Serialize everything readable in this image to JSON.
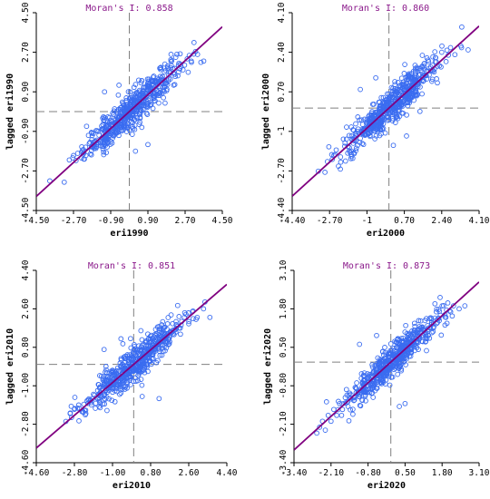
{
  "chart_data": [
    {
      "type": "scatter",
      "title": "Moran's I: 0.858",
      "xlabel": "eri1990",
      "ylabel": "lagged eri1990",
      "xticks": [
        "-4.50",
        "-2.70",
        "-0.90",
        "0.90",
        "2.70",
        "4.50"
      ],
      "yticks": [
        "-4.50",
        "-2.70",
        "-0.90",
        "0.90",
        "2.70",
        "4.50"
      ],
      "xlim": [
        -4.5,
        4.5
      ],
      "ylim": [
        -4.5,
        4.5
      ],
      "slope": 0.858,
      "grid": false,
      "point_color": "#3a6cf0",
      "line_color": "#800080",
      "points": [
        [
          -2.9,
          -2.2
        ],
        [
          -2.7,
          -2.0
        ],
        [
          -2.5,
          -1.9
        ],
        [
          -2.3,
          -1.6
        ],
        [
          -2.1,
          -2.0
        ],
        [
          -1.9,
          -1.4
        ],
        [
          -1.8,
          -1.1
        ],
        [
          -1.6,
          -1.5
        ],
        [
          -1.5,
          -0.9
        ],
        [
          -1.4,
          -1.3
        ],
        [
          -1.3,
          -0.8
        ],
        [
          -1.2,
          -1.5
        ],
        [
          -1.1,
          -0.6
        ],
        [
          -1.0,
          -1.0
        ],
        [
          -0.9,
          -0.4
        ],
        [
          -0.8,
          -1.2
        ],
        [
          -0.7,
          -0.5
        ],
        [
          -0.6,
          -0.9
        ],
        [
          -0.5,
          -0.2
        ],
        [
          -0.4,
          -0.7
        ],
        [
          -0.3,
          0.1
        ],
        [
          -0.2,
          -0.4
        ],
        [
          -0.1,
          0.3
        ],
        [
          0.0,
          -0.2
        ],
        [
          0.1,
          0.5
        ],
        [
          0.2,
          0.0
        ],
        [
          0.3,
          0.7
        ],
        [
          0.4,
          0.2
        ],
        [
          0.5,
          0.9
        ],
        [
          0.6,
          0.3
        ],
        [
          0.7,
          1.1
        ],
        [
          0.8,
          0.5
        ],
        [
          0.9,
          1.0
        ],
        [
          1.0,
          0.6
        ],
        [
          1.1,
          1.4
        ],
        [
          1.2,
          0.8
        ],
        [
          1.3,
          1.2
        ],
        [
          1.4,
          0.9
        ],
        [
          1.5,
          1.6
        ],
        [
          1.6,
          1.1
        ],
        [
          1.7,
          1.8
        ],
        [
          1.8,
          1.3
        ],
        [
          1.9,
          1.5
        ],
        [
          2.0,
          2.0
        ],
        [
          2.2,
          1.7
        ],
        [
          2.4,
          2.2
        ],
        [
          2.6,
          1.9
        ],
        [
          2.8,
          2.4
        ],
        [
          3.0,
          2.3
        ],
        [
          3.3,
          2.6
        ],
        [
          3.6,
          2.3
        ],
        [
          0.3,
          -1.8
        ],
        [
          0.9,
          -1.5
        ],
        [
          -1.2,
          0.9
        ],
        [
          -0.5,
          1.2
        ]
      ]
    },
    {
      "type": "scatter",
      "title": "Moran's I: 0.860",
      "xlabel": "eri2000",
      "ylabel": "lagged eri2000",
      "xticks": [
        "-4.40",
        "-2.70",
        "-1",
        "0.70",
        "2.40",
        "4.10"
      ],
      "yticks": [
        "-4.40",
        "-2.70",
        "-1",
        "0.70",
        "2.40",
        "4.10"
      ],
      "xlim": [
        -4.4,
        4.1
      ],
      "ylim": [
        -4.4,
        4.1
      ],
      "slope": 0.86,
      "grid": false,
      "point_color": "#3a6cf0",
      "line_color": "#800080",
      "points": [
        [
          -2.8,
          -2.3
        ],
        [
          -2.6,
          -2.0
        ],
        [
          -2.4,
          -1.8
        ],
        [
          -2.2,
          -2.1
        ],
        [
          -2.0,
          -1.5
        ],
        [
          -1.8,
          -1.7
        ],
        [
          -1.7,
          -1.2
        ],
        [
          -1.5,
          -1.4
        ],
        [
          -1.4,
          -0.9
        ],
        [
          -1.3,
          -1.3
        ],
        [
          -1.2,
          -0.7
        ],
        [
          -1.1,
          -1.1
        ],
        [
          -1.0,
          -0.5
        ],
        [
          -0.9,
          -0.9
        ],
        [
          -0.8,
          -0.3
        ],
        [
          -0.7,
          -0.8
        ],
        [
          -0.6,
          -0.2
        ],
        [
          -0.5,
          -0.6
        ],
        [
          -0.4,
          0.0
        ],
        [
          -0.3,
          -0.4
        ],
        [
          -0.2,
          0.2
        ],
        [
          -0.1,
          -0.2
        ],
        [
          0.0,
          0.4
        ],
        [
          0.1,
          0.0
        ],
        [
          0.2,
          0.6
        ],
        [
          0.3,
          0.2
        ],
        [
          0.4,
          0.8
        ],
        [
          0.5,
          0.3
        ],
        [
          0.6,
          1.0
        ],
        [
          0.7,
          0.5
        ],
        [
          0.8,
          1.2
        ],
        [
          0.9,
          0.7
        ],
        [
          1.0,
          1.3
        ],
        [
          1.1,
          0.8
        ],
        [
          1.2,
          1.5
        ],
        [
          1.3,
          1.0
        ],
        [
          1.4,
          1.7
        ],
        [
          1.5,
          1.2
        ],
        [
          1.6,
          1.9
        ],
        [
          1.7,
          1.4
        ],
        [
          1.8,
          2.0
        ],
        [
          1.9,
          1.6
        ],
        [
          2.0,
          2.2
        ],
        [
          2.2,
          1.8
        ],
        [
          2.4,
          2.4
        ],
        [
          2.6,
          2.0
        ],
        [
          2.8,
          2.6
        ],
        [
          3.0,
          2.3
        ],
        [
          3.3,
          2.6
        ],
        [
          3.6,
          2.5
        ],
        [
          0.2,
          -1.6
        ],
        [
          0.8,
          -1.2
        ],
        [
          -1.3,
          0.8
        ],
        [
          -0.6,
          1.3
        ]
      ]
    },
    {
      "type": "scatter",
      "title": "Moran's I: 0.851",
      "xlabel": "eri2010",
      "ylabel": "lagged eri2010",
      "xticks": [
        "-4.60",
        "-2.80",
        "-1.00",
        "0.80",
        "2.60",
        "4.40"
      ],
      "yticks": [
        "-4.60",
        "-2.80",
        "-1.00",
        "0.80",
        "2.60",
        "4.40"
      ],
      "xlim": [
        -4.6,
        4.4
      ],
      "ylim": [
        -4.6,
        4.4
      ],
      "slope": 0.851,
      "grid": false,
      "point_color": "#3a6cf0",
      "line_color": "#800080",
      "points": [
        [
          -3.0,
          -2.3
        ],
        [
          -2.8,
          -2.1
        ],
        [
          -2.6,
          -1.9
        ],
        [
          -2.4,
          -2.2
        ],
        [
          -2.2,
          -1.7
        ],
        [
          -2.0,
          -1.9
        ],
        [
          -1.9,
          -1.4
        ],
        [
          -1.7,
          -1.6
        ],
        [
          -1.6,
          -1.1
        ],
        [
          -1.5,
          -1.5
        ],
        [
          -1.4,
          -0.9
        ],
        [
          -1.3,
          -1.2
        ],
        [
          -1.2,
          -0.7
        ],
        [
          -1.1,
          -1.1
        ],
        [
          -1.0,
          -0.5
        ],
        [
          -0.9,
          -0.9
        ],
        [
          -0.8,
          -0.3
        ],
        [
          -0.7,
          -0.8
        ],
        [
          -0.6,
          -0.1
        ],
        [
          -0.5,
          -0.6
        ],
        [
          -0.4,
          0.1
        ],
        [
          -0.3,
          -0.4
        ],
        [
          -0.2,
          0.3
        ],
        [
          -0.1,
          -0.1
        ],
        [
          0.0,
          0.5
        ],
        [
          0.1,
          0.1
        ],
        [
          0.2,
          0.7
        ],
        [
          0.3,
          0.3
        ],
        [
          0.4,
          0.9
        ],
        [
          0.5,
          0.4
        ],
        [
          0.6,
          1.1
        ],
        [
          0.7,
          0.6
        ],
        [
          0.8,
          1.2
        ],
        [
          0.9,
          0.8
        ],
        [
          1.0,
          1.4
        ],
        [
          1.1,
          0.9
        ],
        [
          1.2,
          1.6
        ],
        [
          1.3,
          1.1
        ],
        [
          1.4,
          1.7
        ],
        [
          1.5,
          1.3
        ],
        [
          1.6,
          1.9
        ],
        [
          1.8,
          1.5
        ],
        [
          2.0,
          2.0
        ],
        [
          2.2,
          1.7
        ],
        [
          2.4,
          2.2
        ],
        [
          2.6,
          1.9
        ],
        [
          2.8,
          2.5
        ],
        [
          3.0,
          2.2
        ],
        [
          3.3,
          2.6
        ],
        [
          3.6,
          2.2
        ],
        [
          0.4,
          -1.5
        ],
        [
          1.2,
          -1.6
        ],
        [
          -1.4,
          0.7
        ],
        [
          -0.6,
          1.2
        ]
      ]
    },
    {
      "type": "scatter",
      "title": "Moran's I: 0.873",
      "xlabel": "eri2020",
      "ylabel": "lagged eri2020",
      "xticks": [
        "-3.40",
        "-2.10",
        "-0.80",
        "0.50",
        "1.80",
        "3.10"
      ],
      "yticks": [
        "-3.40",
        "-2.10",
        "-0.80",
        "0.50",
        "1.80",
        "3.10"
      ],
      "xlim": [
        -3.4,
        3.1
      ],
      "ylim": [
        -3.4,
        3.1
      ],
      "slope": 0.873,
      "grid": false,
      "point_color": "#3a6cf0",
      "line_color": "#800080",
      "points": [
        [
          -2.6,
          -2.4
        ],
        [
          -2.5,
          -2.2
        ],
        [
          -2.4,
          -2.0
        ],
        [
          -2.3,
          -2.3
        ],
        [
          -2.2,
          -1.8
        ],
        [
          -2.1,
          -2.0
        ],
        [
          -2.0,
          -1.6
        ],
        [
          -1.9,
          -1.8
        ],
        [
          -1.8,
          -1.4
        ],
        [
          -1.7,
          -1.6
        ],
        [
          -1.6,
          -1.2
        ],
        [
          -1.5,
          -1.5
        ],
        [
          -1.4,
          -1.1
        ],
        [
          -1.3,
          -1.3
        ],
        [
          -1.2,
          -0.9
        ],
        [
          -1.1,
          -1.1
        ],
        [
          -1.0,
          -0.7
        ],
        [
          -0.9,
          -1.0
        ],
        [
          -0.8,
          -0.5
        ],
        [
          -0.7,
          -0.8
        ],
        [
          -0.6,
          -0.3
        ],
        [
          -0.5,
          -0.6
        ],
        [
          -0.4,
          -0.1
        ],
        [
          -0.3,
          -0.4
        ],
        [
          -0.2,
          0.1
        ],
        [
          -0.1,
          -0.2
        ],
        [
          0.0,
          0.3
        ],
        [
          0.1,
          0.0
        ],
        [
          0.2,
          0.5
        ],
        [
          0.3,
          0.2
        ],
        [
          0.4,
          0.7
        ],
        [
          0.5,
          0.3
        ],
        [
          0.6,
          0.9
        ],
        [
          0.7,
          0.5
        ],
        [
          0.8,
          1.0
        ],
        [
          0.9,
          0.7
        ],
        [
          1.0,
          1.2
        ],
        [
          1.1,
          0.9
        ],
        [
          1.2,
          1.4
        ],
        [
          1.3,
          1.1
        ],
        [
          1.4,
          1.5
        ],
        [
          1.5,
          1.3
        ],
        [
          1.6,
          1.7
        ],
        [
          1.7,
          1.4
        ],
        [
          1.8,
          1.9
        ],
        [
          1.9,
          1.6
        ],
        [
          2.0,
          2.0
        ],
        [
          2.1,
          1.7
        ],
        [
          2.2,
          1.9
        ],
        [
          2.4,
          1.8
        ],
        [
          2.6,
          1.9
        ],
        [
          0.3,
          -1.5
        ],
        [
          0.5,
          -1.4
        ],
        [
          -1.1,
          0.6
        ],
        [
          -0.5,
          0.9
        ]
      ]
    }
  ]
}
